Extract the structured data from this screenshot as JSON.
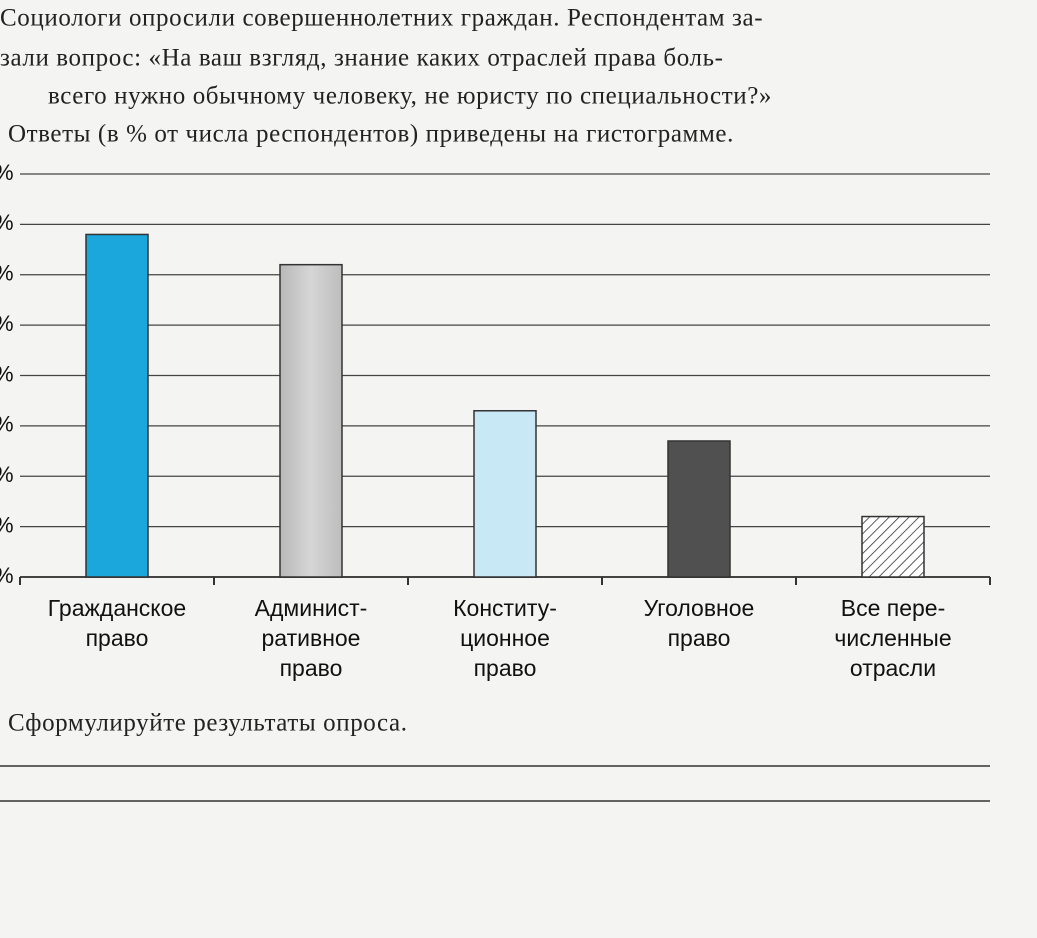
{
  "question": [
    "Социологи опросили совершеннолетних граждан. Респондентам за-",
    "зали вопрос: «На ваш взгляд, знание каких отраслей права боль-",
    "всего нужно обычному человеку, не юристу по специальности?»",
    "Ответы (в % от числа респондентов) приведены на гистограмме."
  ],
  "task": "Сформулируйте результаты опроса.",
  "chart_data": {
    "type": "bar",
    "categories": [
      [
        "Гражданское",
        "право"
      ],
      [
        "Админист-",
        "ративное",
        "право"
      ],
      [
        "Конститу-",
        "ционное",
        "право"
      ],
      [
        "Уголовное",
        "право"
      ],
      [
        "Все пере-",
        "численные",
        "отрасли"
      ]
    ],
    "values": [
      34,
      31,
      16.5,
      13.5,
      6
    ],
    "colors": [
      "#1ba6dc",
      "url(#grayg)",
      "#c9e8f6",
      "#505050",
      "url(#hatch)"
    ],
    "ylim": [
      0,
      40
    ],
    "yticks": [
      {
        "value": 0,
        "label": "%"
      },
      {
        "value": 5,
        "label": "%"
      },
      {
        "value": 10,
        "label": "%"
      },
      {
        "value": 15,
        "label": "%"
      },
      {
        "value": 20,
        "label": "%"
      },
      {
        "value": 25,
        "label": "%"
      },
      {
        "value": 30,
        "label": "%"
      },
      {
        "value": 35,
        "label": "%"
      },
      {
        "value": 40,
        "label": "%"
      }
    ],
    "grid": true
  }
}
